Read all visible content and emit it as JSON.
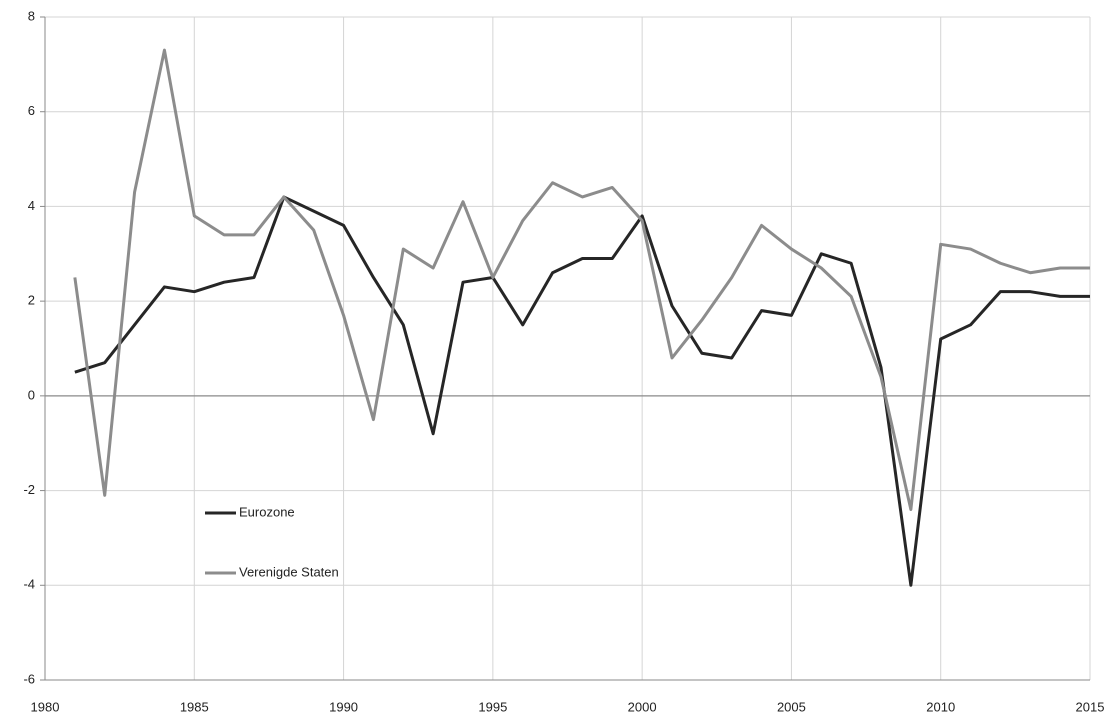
{
  "chart_data": {
    "type": "line",
    "x": [
      1981,
      1982,
      1983,
      1984,
      1985,
      1986,
      1987,
      1988,
      1989,
      1990,
      1991,
      1992,
      1993,
      1994,
      1995,
      1996,
      1997,
      1998,
      1999,
      2000,
      2001,
      2002,
      2003,
      2004,
      2005,
      2006,
      2007,
      2008,
      2009,
      2010,
      2011,
      2012,
      2013,
      2014,
      2015
    ],
    "series": [
      {
        "name": "Eurozone",
        "color": "#262626",
        "values": [
          0.5,
          0.7,
          1.5,
          2.3,
          2.2,
          2.4,
          2.5,
          4.2,
          3.9,
          3.6,
          2.5,
          1.5,
          -0.8,
          2.4,
          2.5,
          1.5,
          2.6,
          2.9,
          2.9,
          3.8,
          1.9,
          0.9,
          0.8,
          1.8,
          1.7,
          3.0,
          2.8,
          0.6,
          -4.0,
          1.2,
          1.5,
          2.2,
          2.2,
          2.1,
          2.1
        ]
      },
      {
        "name": "Verenigde Staten",
        "color": "#8c8c8c",
        "values": [
          2.5,
          -2.1,
          4.3,
          7.3,
          3.8,
          3.4,
          3.4,
          4.2,
          3.5,
          1.7,
          -0.5,
          3.1,
          2.7,
          4.1,
          2.5,
          3.7,
          4.5,
          4.2,
          4.4,
          3.7,
          0.8,
          1.6,
          2.5,
          3.6,
          3.1,
          2.7,
          2.1,
          0.4,
          -2.4,
          3.2,
          3.1,
          2.8,
          2.6,
          2.7,
          2.7
        ]
      }
    ],
    "xlim": [
      1980,
      2015
    ],
    "xticks": [
      1980,
      1985,
      1990,
      1995,
      2000,
      2005,
      2010,
      2015
    ],
    "ylim": [
      -6,
      8
    ],
    "yticks": [
      -6,
      -4,
      -2,
      0,
      2,
      4,
      6,
      8
    ],
    "grid": true
  }
}
